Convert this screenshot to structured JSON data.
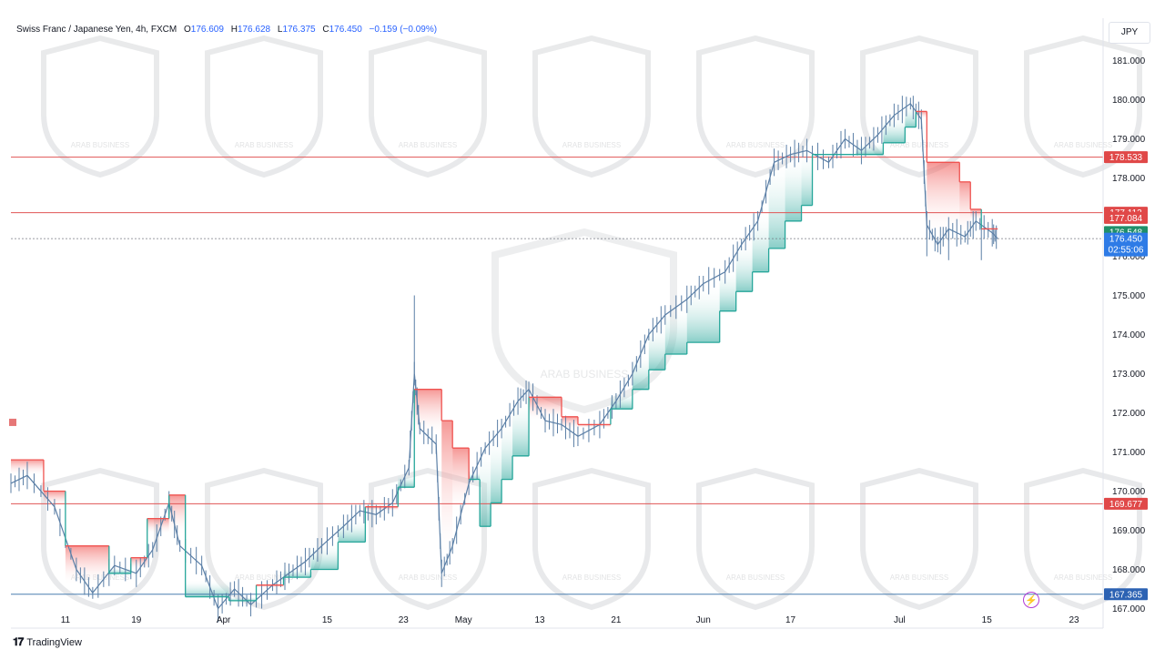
{
  "header": {
    "symbol": "Swiss Franc / Japanese Yen, 4h, FXCM",
    "o_label": "O",
    "o_value": "176.609",
    "h_label": "H",
    "h_value": "176.628",
    "l_label": "L",
    "l_value": "176.375",
    "c_label": "C",
    "c_value": "176.450",
    "change": "−0.159 (−0.09%)"
  },
  "currency": "JPY",
  "branding": "TradingView",
  "watermark_text": "ARAB BUSINESS",
  "colors": {
    "up": "#26a69a",
    "down": "#ef5350",
    "candle": "#5b7fa6",
    "resistance": "#e05555",
    "support": "#4a7fb0",
    "price_blue": "#2962ff"
  },
  "chart_data": {
    "type": "line",
    "x_ticks": [
      "11",
      "19",
      "Apr",
      "15",
      "23",
      "May",
      "13",
      "21",
      "Jun",
      "17",
      "Jul",
      "15",
      "23"
    ],
    "y_ticks": [
      "167.000",
      "168.000",
      "169.000",
      "170.000",
      "171.000",
      "172.000",
      "173.000",
      "174.000",
      "175.000",
      "176.000",
      "177.000",
      "178.000",
      "179.000",
      "180.000",
      "181.000"
    ],
    "ylim": [
      166.5,
      181.5
    ],
    "price_path": [
      [
        0,
        170.2
      ],
      [
        3,
        170.4
      ],
      [
        8,
        169.6
      ],
      [
        12,
        168.0
      ],
      [
        15,
        167.4
      ],
      [
        19,
        168.1
      ],
      [
        23,
        167.9
      ],
      [
        26,
        168.5
      ],
      [
        29,
        169.7
      ],
      [
        31,
        168.6
      ],
      [
        35,
        168.1
      ],
      [
        38,
        167.0
      ],
      [
        41,
        167.5
      ],
      [
        44,
        167.1
      ],
      [
        48,
        167.6
      ],
      [
        51,
        167.9
      ],
      [
        54,
        168.2
      ],
      [
        57,
        168.6
      ],
      [
        61,
        169.1
      ],
      [
        64,
        169.5
      ],
      [
        67,
        169.4
      ],
      [
        70,
        169.7
      ],
      [
        73,
        170.6
      ],
      [
        74,
        173.0
      ],
      [
        75,
        171.6
      ],
      [
        78,
        171.2
      ],
      [
        79,
        167.9
      ],
      [
        81,
        168.6
      ],
      [
        84,
        170.2
      ],
      [
        87,
        171.1
      ],
      [
        90,
        171.6
      ],
      [
        93,
        172.3
      ],
      [
        95,
        172.6
      ],
      [
        98,
        171.8
      ],
      [
        101,
        171.7
      ],
      [
        104,
        171.4
      ],
      [
        108,
        171.7
      ],
      [
        111,
        172.3
      ],
      [
        114,
        173.0
      ],
      [
        117,
        174.0
      ],
      [
        120,
        174.5
      ],
      [
        124,
        174.9
      ],
      [
        127,
        175.3
      ],
      [
        131,
        175.6
      ],
      [
        134,
        176.3
      ],
      [
        137,
        176.9
      ],
      [
        140,
        178.4
      ],
      [
        143,
        178.6
      ],
      [
        146,
        178.7
      ],
      [
        150,
        178.4
      ],
      [
        153,
        179.0
      ],
      [
        156,
        178.7
      ],
      [
        159,
        179.1
      ],
      [
        162,
        179.6
      ],
      [
        165,
        179.9
      ],
      [
        167,
        179.5
      ],
      [
        168,
        176.8
      ],
      [
        170,
        176.3
      ],
      [
        172,
        176.7
      ],
      [
        175,
        176.5
      ],
      [
        177,
        176.9
      ],
      [
        180,
        176.6
      ],
      [
        181,
        176.45
      ]
    ],
    "price_spikes": [
      [
        74,
        175.0
      ],
      [
        79,
        167.9
      ],
      [
        168,
        176.0
      ],
      [
        172,
        175.9
      ],
      [
        178,
        175.9
      ]
    ],
    "stop_line": [
      [
        0,
        170.8
      ],
      [
        6,
        170.8
      ],
      [
        6,
        170.0
      ],
      [
        10,
        170.0
      ],
      [
        10,
        168.6
      ],
      [
        18,
        168.6
      ],
      [
        18,
        167.9
      ],
      [
        22,
        167.9
      ],
      [
        22,
        168.3
      ],
      [
        25,
        168.3
      ],
      [
        25,
        169.3
      ],
      [
        29,
        169.3
      ],
      [
        29,
        169.9
      ],
      [
        32,
        169.9
      ],
      [
        32,
        167.3
      ],
      [
        40,
        167.3
      ],
      [
        40,
        167.2
      ],
      [
        45,
        167.2
      ],
      [
        45,
        167.6
      ],
      [
        50,
        167.6
      ],
      [
        50,
        167.8
      ],
      [
        55,
        167.8
      ],
      [
        55,
        168.0
      ],
      [
        60,
        168.0
      ],
      [
        60,
        168.7
      ],
      [
        65,
        168.7
      ],
      [
        65,
        169.6
      ],
      [
        71,
        169.6
      ],
      [
        71,
        170.1
      ],
      [
        74,
        170.1
      ],
      [
        74,
        172.6
      ],
      [
        79,
        172.6
      ],
      [
        79,
        171.8
      ],
      [
        81,
        171.8
      ],
      [
        81,
        171.1
      ],
      [
        84,
        171.1
      ],
      [
        84,
        170.3
      ],
      [
        86,
        170.3
      ],
      [
        86,
        169.1
      ],
      [
        88,
        169.1
      ],
      [
        88,
        169.7
      ],
      [
        90,
        169.7
      ],
      [
        90,
        170.3
      ],
      [
        92,
        170.3
      ],
      [
        92,
        170.9
      ],
      [
        95,
        170.9
      ],
      [
        95,
        172.4
      ],
      [
        101,
        172.4
      ],
      [
        101,
        171.9
      ],
      [
        104,
        171.9
      ],
      [
        104,
        171.7
      ],
      [
        110,
        171.7
      ],
      [
        110,
        172.1
      ],
      [
        114,
        172.1
      ],
      [
        114,
        172.6
      ],
      [
        117,
        172.6
      ],
      [
        117,
        173.1
      ],
      [
        120,
        173.1
      ],
      [
        120,
        173.5
      ],
      [
        124,
        173.5
      ],
      [
        124,
        173.8
      ],
      [
        130,
        173.8
      ],
      [
        130,
        174.6
      ],
      [
        133,
        174.6
      ],
      [
        133,
        175.1
      ],
      [
        136,
        175.1
      ],
      [
        136,
        175.6
      ],
      [
        139,
        175.6
      ],
      [
        139,
        176.2
      ],
      [
        142,
        176.2
      ],
      [
        142,
        176.9
      ],
      [
        145,
        176.9
      ],
      [
        145,
        177.3
      ],
      [
        147,
        177.3
      ],
      [
        147,
        178.6
      ],
      [
        155,
        178.6
      ],
      [
        155,
        178.6
      ],
      [
        160,
        178.6
      ],
      [
        160,
        178.9
      ],
      [
        164,
        178.9
      ],
      [
        164,
        179.3
      ],
      [
        166,
        179.3
      ],
      [
        166,
        179.7
      ],
      [
        168,
        179.7
      ],
      [
        168,
        178.4
      ],
      [
        174,
        178.4
      ],
      [
        174,
        177.9
      ],
      [
        176,
        177.9
      ],
      [
        176,
        177.2
      ],
      [
        178,
        177.2
      ],
      [
        178,
        176.7
      ],
      [
        181,
        176.7
      ]
    ],
    "horizontal_levels": [
      {
        "value": 178.533,
        "label": "178.533",
        "kind": "resistance"
      },
      {
        "value": 177.113,
        "label": "177.113",
        "kind": "resistance"
      },
      {
        "value": 169.677,
        "label": "169.677",
        "kind": "resistance"
      },
      {
        "value": 167.365,
        "label": "167.365",
        "kind": "support"
      }
    ],
    "axis_badges": [
      {
        "value": 176.98,
        "label": "177.084",
        "kind": "down"
      },
      {
        "value": 176.62,
        "label": "176.548",
        "kind": "up"
      },
      {
        "value": 176.45,
        "label": "176.450",
        "sub": "02:55:06",
        "kind": "current"
      }
    ],
    "x_tick_positions": [
      10,
      23,
      39,
      58,
      72,
      83,
      97,
      111,
      127,
      143,
      163,
      179,
      195
    ]
  }
}
